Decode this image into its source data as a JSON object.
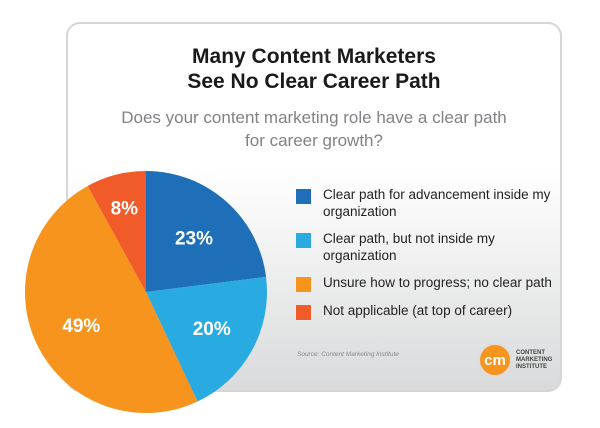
{
  "chart_data": {
    "type": "pie",
    "title": "Many Content Marketers See No Clear Career Path",
    "subtitle": "Does your content marketing role have a clear path for career growth?",
    "categories": [
      "Clear path for advancement inside my organization",
      "Clear path, but not inside my organization",
      "Unsure how to progress; no clear path",
      "Not applicable (at top of career)"
    ],
    "values": [
      23,
      20,
      49,
      8
    ],
    "labels": [
      "23%",
      "20%",
      "49%",
      "8%"
    ],
    "colors": [
      "#1f6fb8",
      "#29abe2",
      "#f7941d",
      "#f15a29"
    ],
    "start": "12 o'clock",
    "direction": "clockwise",
    "legend": "right"
  },
  "title_lines": [
    "Many Content Marketers",
    "See No Clear Career Path"
  ],
  "question_lines": [
    "Does your content marketing role have a clear path",
    "for career growth?"
  ],
  "source": "Source: Content Marketing Institute",
  "logo": {
    "mark": "cm",
    "lines": [
      "CONTENT",
      "MARKETING",
      "INSTITUTE"
    ]
  }
}
